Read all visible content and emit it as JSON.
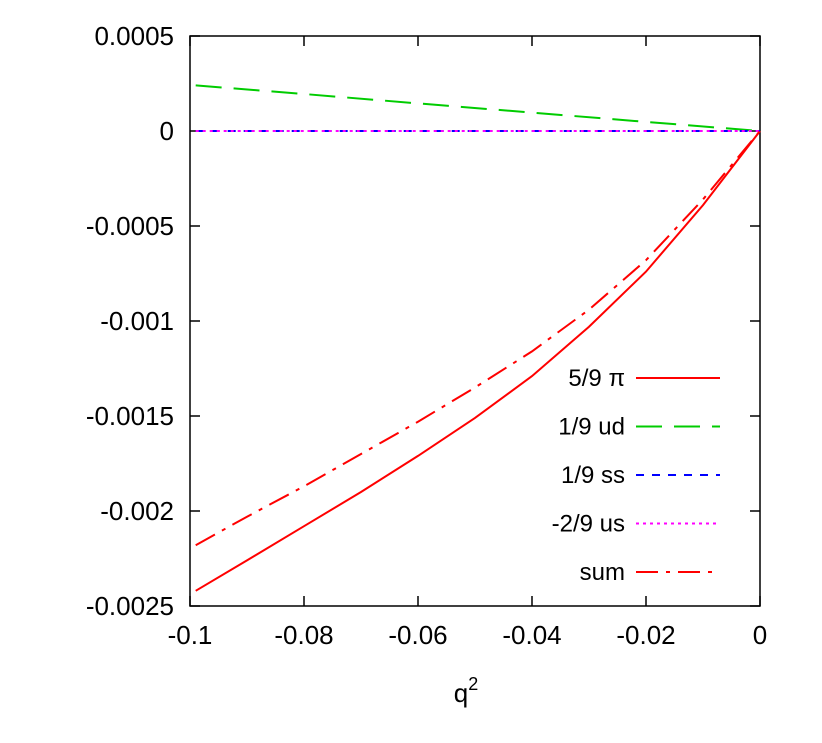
{
  "chart_data": {
    "type": "line",
    "title": "",
    "xlabel": "q",
    "xlabel_superscript": "2",
    "ylabel": "",
    "xlim": [
      -0.1,
      0
    ],
    "ylim": [
      -0.0025,
      0.0005
    ],
    "grid": false,
    "legend_position": "bottom-right",
    "x_ticks": [
      -0.1,
      -0.08,
      -0.06,
      -0.04,
      -0.02,
      0
    ],
    "x_tick_labels": [
      "-0.1",
      "-0.08",
      "-0.06",
      "-0.04",
      "-0.02",
      "0"
    ],
    "y_ticks": [
      0.0005,
      0,
      -0.0005,
      -0.001,
      -0.0015,
      -0.002,
      -0.0025
    ],
    "y_tick_labels": [
      "0.0005",
      "0",
      "-0.0005",
      "-0.001",
      "-0.0015",
      "-0.002",
      "-0.0025"
    ],
    "series": [
      {
        "name": "5/9 π",
        "color": "#ff0000",
        "dash": "solid",
        "x": [
          -0.099,
          -0.09,
          -0.08,
          -0.07,
          -0.06,
          -0.05,
          -0.04,
          -0.03,
          -0.02,
          -0.01,
          0
        ],
        "y": [
          -0.00242,
          -0.00226,
          -0.00208,
          -0.0019,
          -0.00171,
          -0.00151,
          -0.00129,
          -0.00103,
          -0.00074,
          -0.00039,
          0
        ]
      },
      {
        "name": "1/9 ud",
        "color": "#00cc00",
        "dash": "long",
        "x": [
          -0.099,
          -0.08,
          -0.06,
          -0.04,
          -0.02,
          0
        ],
        "y": [
          0.00024,
          0.000195,
          0.000145,
          9.7e-05,
          4.8e-05,
          0
        ]
      },
      {
        "name": "1/9 ss",
        "color": "#0000ff",
        "dash": "short",
        "x": [
          -0.099,
          0
        ],
        "y": [
          0,
          0
        ]
      },
      {
        "name": "-2/9 us",
        "color": "#ff00ff",
        "dash": "dotted",
        "x": [
          -0.099,
          0
        ],
        "y": [
          0,
          0
        ]
      },
      {
        "name": "sum",
        "color": "#ff0000",
        "dash": "dashdot",
        "x": [
          -0.099,
          -0.09,
          -0.08,
          -0.07,
          -0.06,
          -0.05,
          -0.04,
          -0.03,
          -0.02,
          -0.01,
          0
        ],
        "y": [
          -0.00218,
          -0.00203,
          -0.00187,
          -0.0017,
          -0.00153,
          -0.00135,
          -0.00116,
          -0.00094,
          -0.00068,
          -0.00036,
          0
        ]
      }
    ]
  }
}
